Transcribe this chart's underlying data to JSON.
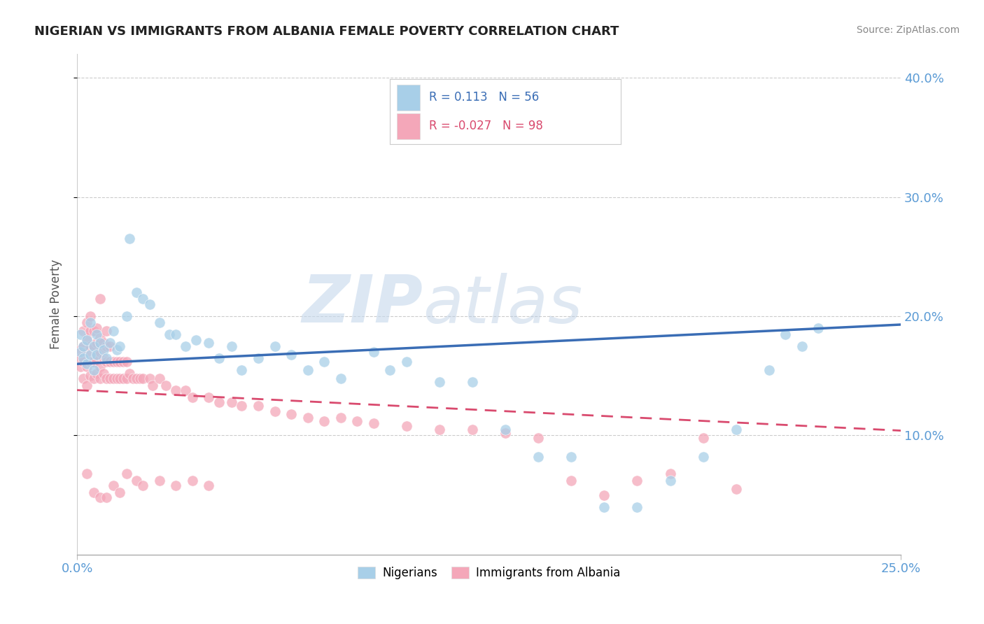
{
  "title": "NIGERIAN VS IMMIGRANTS FROM ALBANIA FEMALE POVERTY CORRELATION CHART",
  "source": "Source: ZipAtlas.com",
  "ylabel": "Female Poverty",
  "xlim": [
    0.0,
    0.25
  ],
  "ylim": [
    0.0,
    0.42
  ],
  "xtick_vals": [
    0.0,
    0.25
  ],
  "xtick_labels": [
    "0.0%",
    "25.0%"
  ],
  "yticks": [
    0.1,
    0.2,
    0.3,
    0.4
  ],
  "ytick_labels": [
    "10.0%",
    "20.0%",
    "30.0%",
    "40.0%"
  ],
  "color_blue": "#a8cfe8",
  "color_pink": "#f4a7b9",
  "color_blue_line": "#3a6db5",
  "color_pink_line": "#d94a6e",
  "watermark_zip": "ZIP",
  "watermark_atlas": "atlas",
  "legend_items": [
    {
      "color": "#a8cfe8",
      "text_r": "R =",
      "val_r": "0.113",
      "text_n": "N =",
      "val_n": "56"
    },
    {
      "color": "#f4a7b9",
      "text_r": "R =",
      "val_r": "-0.027",
      "text_n": "N =",
      "val_n": "98"
    }
  ],
  "nig_trend_x0": 0.0,
  "nig_trend_y0": 0.16,
  "nig_trend_x1": 0.25,
  "nig_trend_y1": 0.193,
  "alb_trend_x0": 0.0,
  "alb_trend_y0": 0.138,
  "alb_trend_x1": 0.25,
  "alb_trend_y1": 0.104,
  "nigerians_x": [
    0.001,
    0.001,
    0.002,
    0.002,
    0.003,
    0.003,
    0.004,
    0.004,
    0.005,
    0.005,
    0.006,
    0.006,
    0.007,
    0.008,
    0.009,
    0.01,
    0.011,
    0.012,
    0.013,
    0.015,
    0.016,
    0.018,
    0.02,
    0.022,
    0.025,
    0.028,
    0.03,
    0.033,
    0.036,
    0.04,
    0.043,
    0.047,
    0.05,
    0.055,
    0.06,
    0.065,
    0.07,
    0.075,
    0.08,
    0.09,
    0.095,
    0.1,
    0.11,
    0.12,
    0.13,
    0.14,
    0.15,
    0.16,
    0.17,
    0.18,
    0.19,
    0.2,
    0.21,
    0.215,
    0.22,
    0.225
  ],
  "nigerians_y": [
    0.17,
    0.185,
    0.165,
    0.175,
    0.16,
    0.18,
    0.168,
    0.195,
    0.155,
    0.175,
    0.168,
    0.185,
    0.178,
    0.172,
    0.165,
    0.178,
    0.188,
    0.172,
    0.175,
    0.2,
    0.265,
    0.22,
    0.215,
    0.21,
    0.195,
    0.185,
    0.185,
    0.175,
    0.18,
    0.178,
    0.165,
    0.175,
    0.155,
    0.165,
    0.175,
    0.168,
    0.155,
    0.162,
    0.148,
    0.17,
    0.155,
    0.162,
    0.145,
    0.145,
    0.105,
    0.082,
    0.082,
    0.04,
    0.04,
    0.062,
    0.082,
    0.105,
    0.155,
    0.185,
    0.175,
    0.19
  ],
  "albania_x": [
    0.001,
    0.001,
    0.001,
    0.002,
    0.002,
    0.002,
    0.002,
    0.003,
    0.003,
    0.003,
    0.003,
    0.003,
    0.004,
    0.004,
    0.004,
    0.004,
    0.004,
    0.005,
    0.005,
    0.005,
    0.005,
    0.006,
    0.006,
    0.006,
    0.006,
    0.007,
    0.007,
    0.007,
    0.007,
    0.007,
    0.008,
    0.008,
    0.008,
    0.009,
    0.009,
    0.009,
    0.009,
    0.01,
    0.01,
    0.01,
    0.011,
    0.011,
    0.012,
    0.012,
    0.013,
    0.013,
    0.014,
    0.014,
    0.015,
    0.015,
    0.016,
    0.017,
    0.018,
    0.019,
    0.02,
    0.022,
    0.023,
    0.025,
    0.027,
    0.03,
    0.033,
    0.035,
    0.04,
    0.043,
    0.047,
    0.05,
    0.055,
    0.06,
    0.065,
    0.07,
    0.075,
    0.08,
    0.085,
    0.09,
    0.1,
    0.11,
    0.12,
    0.13,
    0.14,
    0.15,
    0.16,
    0.17,
    0.18,
    0.19,
    0.2,
    0.003,
    0.005,
    0.007,
    0.009,
    0.011,
    0.013,
    0.015,
    0.018,
    0.02,
    0.025,
    0.03,
    0.035,
    0.04
  ],
  "albania_y": [
    0.158,
    0.172,
    0.165,
    0.148,
    0.162,
    0.175,
    0.188,
    0.142,
    0.158,
    0.17,
    0.182,
    0.195,
    0.15,
    0.162,
    0.175,
    0.188,
    0.2,
    0.148,
    0.162,
    0.175,
    0.188,
    0.152,
    0.168,
    0.178,
    0.19,
    0.148,
    0.158,
    0.17,
    0.182,
    0.215,
    0.152,
    0.165,
    0.178,
    0.148,
    0.162,
    0.175,
    0.188,
    0.148,
    0.162,
    0.175,
    0.148,
    0.162,
    0.148,
    0.162,
    0.148,
    0.162,
    0.148,
    0.162,
    0.148,
    0.162,
    0.152,
    0.148,
    0.148,
    0.148,
    0.148,
    0.148,
    0.142,
    0.148,
    0.142,
    0.138,
    0.138,
    0.132,
    0.132,
    0.128,
    0.128,
    0.125,
    0.125,
    0.12,
    0.118,
    0.115,
    0.112,
    0.115,
    0.112,
    0.11,
    0.108,
    0.105,
    0.105,
    0.102,
    0.098,
    0.062,
    0.05,
    0.062,
    0.068,
    0.098,
    0.055,
    0.068,
    0.052,
    0.048,
    0.048,
    0.058,
    0.052,
    0.068,
    0.062,
    0.058,
    0.062,
    0.058,
    0.062,
    0.058
  ]
}
